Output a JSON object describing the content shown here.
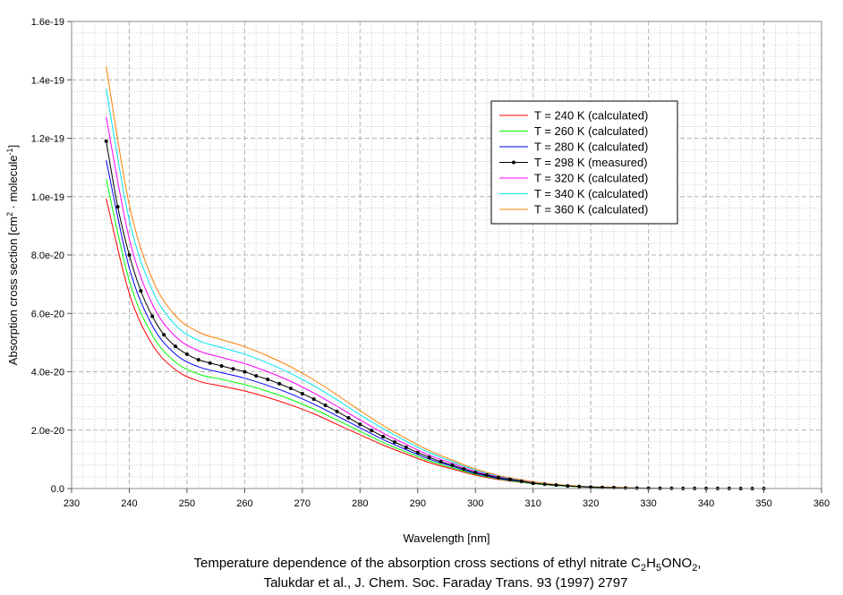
{
  "chart_data": {
    "type": "line",
    "title": "",
    "xlabel": "Wavelength [nm]",
    "ylabel_main": "Absorption cross section [cm",
    "ylabel_sup1": "2",
    "ylabel_mid": " · molecule",
    "ylabel_sup2": "-1",
    "ylabel_end": "]",
    "xlim": [
      230,
      360
    ],
    "ylim": [
      0,
      1.6e-19
    ],
    "value_unit_scale": 1e-20,
    "xticks": [
      230,
      240,
      250,
      260,
      270,
      280,
      290,
      300,
      310,
      320,
      330,
      340,
      350,
      360
    ],
    "xtick_labels": [
      "230",
      "240",
      "250",
      "260",
      "270",
      "280",
      "290",
      "300",
      "310",
      "320",
      "330",
      "340",
      "350",
      "360"
    ],
    "yticks": [
      0,
      2e-20,
      4e-20,
      6e-20,
      8e-20,
      1e-19,
      1.2e-19,
      1.4e-19,
      1.6e-19
    ],
    "ytick_labels": [
      "0.0",
      "2.0e-20",
      "4.0e-20",
      "6.0e-20",
      "8.0e-20",
      "1.0e-19",
      "1.2e-19",
      "1.4e-19",
      "1.6e-19"
    ],
    "grid": true,
    "legend_placement": "upper-right-center",
    "series": [
      {
        "name": "T = 240 K (calculated)",
        "color": "#ff0000",
        "markers": false,
        "x": [
          236,
          240,
          244,
          248,
          252,
          256,
          260,
          264,
          268,
          272,
          276,
          280,
          284,
          288,
          292,
          296,
          300,
          304,
          308,
          312,
          316,
          320,
          324,
          328,
          332
        ],
        "values": [
          9.94,
          6.68,
          4.93,
          4.07,
          3.68,
          3.51,
          3.34,
          3.12,
          2.86,
          2.56,
          2.2,
          1.84,
          1.49,
          1.18,
          0.89,
          0.67,
          0.46,
          0.31,
          0.21,
          0.13,
          0.08,
          0.04,
          0.03,
          0.01,
          0.01
        ]
      },
      {
        "name": "T = 260 K (calculated)",
        "color": "#00ff00",
        "markers": false,
        "x": [
          236,
          240,
          244,
          248,
          252,
          256,
          260,
          264,
          268,
          272,
          276,
          280,
          284,
          288,
          292,
          296,
          300,
          304,
          308,
          312,
          316,
          320,
          324,
          328,
          332
        ],
        "values": [
          10.6,
          7.12,
          5.25,
          4.33,
          3.92,
          3.74,
          3.56,
          3.33,
          3.05,
          2.72,
          2.35,
          1.96,
          1.58,
          1.25,
          0.95,
          0.71,
          0.49,
          0.33,
          0.22,
          0.13,
          0.08,
          0.04,
          0.03,
          0.01,
          0.01
        ]
      },
      {
        "name": "T = 280 K (calculated)",
        "color": "#0000ff",
        "markers": false,
        "x": [
          236,
          240,
          244,
          248,
          252,
          256,
          260,
          264,
          268,
          272,
          276,
          280,
          284,
          288,
          292,
          296,
          300,
          304,
          308,
          312,
          316,
          320,
          324,
          328,
          332
        ],
        "values": [
          11.25,
          7.56,
          5.58,
          4.6,
          4.17,
          3.97,
          3.78,
          3.53,
          3.24,
          2.89,
          2.49,
          2.08,
          1.68,
          1.33,
          1.01,
          0.76,
          0.52,
          0.35,
          0.24,
          0.14,
          0.09,
          0.05,
          0.03,
          0.01,
          0.01
        ]
      },
      {
        "name": "T = 298 K (measured)",
        "color": "#000000",
        "markers": true,
        "x": [
          236,
          238,
          240,
          242,
          244,
          246,
          248,
          250,
          252,
          254,
          256,
          258,
          260,
          262,
          264,
          266,
          268,
          270,
          272,
          274,
          276,
          278,
          280,
          282,
          284,
          286,
          288,
          290,
          292,
          294,
          296,
          298,
          300,
          302,
          304,
          306,
          308,
          310,
          312,
          314,
          316,
          318,
          320,
          322,
          324,
          326,
          328,
          330,
          332,
          334,
          336,
          338,
          340,
          342,
          344,
          346,
          348,
          350
        ],
        "values": [
          11.9,
          9.65,
          8.0,
          6.77,
          5.9,
          5.27,
          4.87,
          4.6,
          4.41,
          4.3,
          4.2,
          4.1,
          4.0,
          3.86,
          3.74,
          3.59,
          3.43,
          3.25,
          3.06,
          2.85,
          2.64,
          2.42,
          2.2,
          1.99,
          1.78,
          1.59,
          1.41,
          1.23,
          1.07,
          0.92,
          0.8,
          0.67,
          0.55,
          0.46,
          0.37,
          0.31,
          0.25,
          0.18,
          0.15,
          0.12,
          0.09,
          0.07,
          0.05,
          0.04,
          0.03,
          0.02,
          0.015,
          0.01,
          0.008,
          0.006,
          0.005,
          0.004,
          0.003,
          0.002,
          0.002,
          0.001,
          0.001,
          0.001
        ]
      },
      {
        "name": "T = 320 K (calculated)",
        "color": "#ff00ff",
        "markers": false,
        "x": [
          236,
          240,
          244,
          248,
          252,
          256,
          260,
          264,
          268,
          272,
          276,
          280,
          284,
          288,
          292,
          296,
          300,
          304,
          308,
          312,
          316,
          320,
          324,
          328,
          332
        ],
        "values": [
          12.73,
          8.56,
          6.31,
          5.21,
          4.72,
          4.49,
          4.28,
          4.0,
          3.67,
          3.27,
          2.82,
          2.35,
          1.9,
          1.51,
          1.14,
          0.86,
          0.59,
          0.4,
          0.27,
          0.16,
          0.1,
          0.05,
          0.03,
          0.02,
          0.01
        ]
      },
      {
        "name": "T = 340 K (calculated)",
        "color": "#00e5ee",
        "markers": false,
        "x": [
          236,
          240,
          244,
          248,
          252,
          256,
          260,
          264,
          268,
          272,
          276,
          280,
          284,
          288,
          292,
          296,
          300,
          304,
          308,
          312,
          316,
          320,
          324,
          328,
          332
        ],
        "values": [
          13.69,
          9.2,
          6.79,
          5.6,
          5.07,
          4.83,
          4.6,
          4.3,
          3.94,
          3.52,
          3.04,
          2.53,
          2.05,
          1.62,
          1.23,
          0.92,
          0.63,
          0.43,
          0.29,
          0.17,
          0.1,
          0.06,
          0.03,
          0.02,
          0.01
        ]
      },
      {
        "name": "T = 360 K (calculated)",
        "color": "#ff8000",
        "markers": false,
        "x": [
          236,
          240,
          244,
          248,
          252,
          256,
          260,
          264,
          268,
          272,
          276,
          280,
          284,
          288,
          292,
          296,
          300,
          304,
          308,
          312,
          316,
          320,
          324,
          328,
          332
        ],
        "values": [
          14.46,
          9.72,
          7.17,
          5.92,
          5.36,
          5.1,
          4.86,
          4.54,
          4.17,
          3.72,
          3.21,
          2.67,
          2.16,
          1.71,
          1.3,
          0.97,
          0.67,
          0.45,
          0.3,
          0.18,
          0.11,
          0.06,
          0.04,
          0.02,
          0.01
        ]
      }
    ],
    "caption": {
      "line1_a": "Temperature dependence of the absorption cross sections of ethyl nitrate C",
      "line1_s1": "2",
      "line1_b": "H",
      "line1_s2": "5",
      "line1_c": "ONO",
      "line1_s3": "2",
      "line1_d": ",",
      "line2": "Talukdar et al., J. Chem. Soc. Faraday Trans. 93 (1997) 2797"
    }
  }
}
